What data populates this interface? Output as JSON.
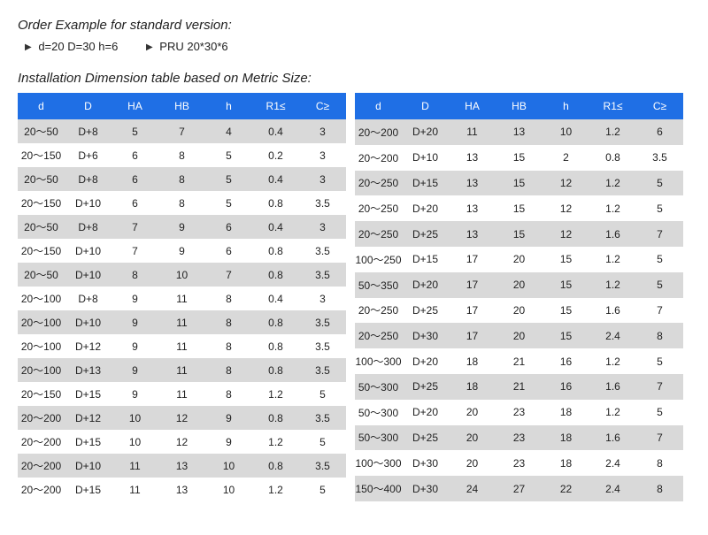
{
  "headings": {
    "order_example": "Order Example for standard version:",
    "install_table": "Installation Dimension table based on Metric Size:"
  },
  "example": {
    "left": "d=20 D=30 h=6",
    "right": "PRU 20*30*6"
  },
  "columns": [
    "d",
    "D",
    "HA",
    "HB",
    "h",
    "R1≤",
    "C≥"
  ],
  "left_rows": [
    [
      "20～50",
      "D+8",
      "5",
      "7",
      "4",
      "0.4",
      "3"
    ],
    [
      "20～150",
      "D+6",
      "6",
      "8",
      "5",
      "0.2",
      "3"
    ],
    [
      "20～50",
      "D+8",
      "6",
      "8",
      "5",
      "0.4",
      "3"
    ],
    [
      "20～150",
      "D+10",
      "6",
      "8",
      "5",
      "0.8",
      "3.5"
    ],
    [
      "20～50",
      "D+8",
      "7",
      "9",
      "6",
      "0.4",
      "3"
    ],
    [
      "20～150",
      "D+10",
      "7",
      "9",
      "6",
      "0.8",
      "3.5"
    ],
    [
      "20～50",
      "D+10",
      "8",
      "10",
      "7",
      "0.8",
      "3.5"
    ],
    [
      "20～100",
      "D+8",
      "9",
      "11",
      "8",
      "0.4",
      "3"
    ],
    [
      "20～100",
      "D+10",
      "9",
      "11",
      "8",
      "0.8",
      "3.5"
    ],
    [
      "20～100",
      "D+12",
      "9",
      "11",
      "8",
      "0.8",
      "3.5"
    ],
    [
      "20～100",
      "D+13",
      "9",
      "11",
      "8",
      "0.8",
      "3.5"
    ],
    [
      "20～150",
      "D+15",
      "9",
      "11",
      "8",
      "1.2",
      "5"
    ],
    [
      "20～200",
      "D+12",
      "10",
      "12",
      "9",
      "0.8",
      "3.5"
    ],
    [
      "20～200",
      "D+15",
      "10",
      "12",
      "9",
      "1.2",
      "5"
    ],
    [
      "20～200",
      "D+10",
      "11",
      "13",
      "10",
      "0.8",
      "3.5"
    ],
    [
      "20～200",
      "D+15",
      "11",
      "13",
      "10",
      "1.2",
      "5"
    ]
  ],
  "right_rows": [
    [
      "20～200",
      "D+20",
      "11",
      "13",
      "10",
      "1.2",
      "6"
    ],
    [
      "20～200",
      "D+10",
      "13",
      "15",
      "2",
      "0.8",
      "3.5"
    ],
    [
      "20～250",
      "D+15",
      "13",
      "15",
      "12",
      "1.2",
      "5"
    ],
    [
      "20～250",
      "D+20",
      "13",
      "15",
      "12",
      "1.2",
      "5"
    ],
    [
      "20～250",
      "D+25",
      "13",
      "15",
      "12",
      "1.6",
      "7"
    ],
    [
      "100～250",
      "D+15",
      "17",
      "20",
      "15",
      "1.2",
      "5"
    ],
    [
      "50～350",
      "D+20",
      "17",
      "20",
      "15",
      "1.2",
      "5"
    ],
    [
      "20～250",
      "D+25",
      "17",
      "20",
      "15",
      "1.6",
      "7"
    ],
    [
      "20～250",
      "D+30",
      "17",
      "20",
      "15",
      "2.4",
      "8"
    ],
    [
      "100～300",
      "D+20",
      "18",
      "21",
      "16",
      "1.2",
      "5"
    ],
    [
      "50～300",
      "D+25",
      "18",
      "21",
      "16",
      "1.6",
      "7"
    ],
    [
      "50～300",
      "D+20",
      "20",
      "23",
      "18",
      "1.2",
      "5"
    ],
    [
      "50～300",
      "D+25",
      "20",
      "23",
      "18",
      "1.6",
      "7"
    ],
    [
      "100～300",
      "D+30",
      "20",
      "23",
      "18",
      "2.4",
      "8"
    ],
    [
      "150～400",
      "D+30",
      "24",
      "27",
      "22",
      "2.4",
      "8"
    ]
  ]
}
